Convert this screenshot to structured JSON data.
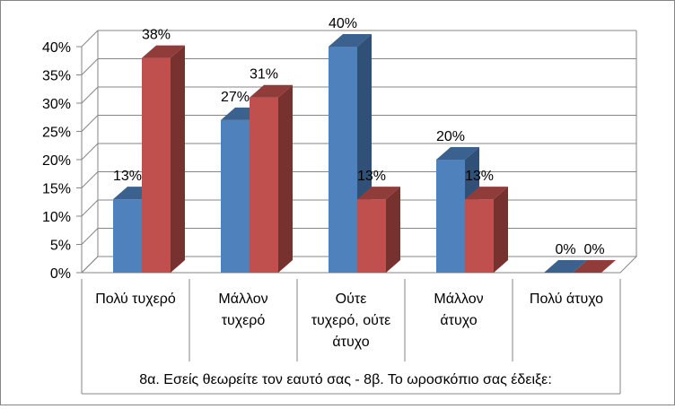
{
  "chart_data": {
    "type": "bar",
    "categories": [
      [
        "Πολύ τυχερό"
      ],
      [
        "Μάλλον",
        "τυχερό"
      ],
      [
        "Ούτε",
        "τυχερό, ούτε",
        "άτυχο"
      ],
      [
        "Μάλλον",
        "άτυχο"
      ],
      [
        "Πολύ άτυχο"
      ]
    ],
    "series": [
      {
        "values": [
          13,
          27,
          40,
          20,
          0
        ],
        "labels": [
          "13%",
          "27%",
          "40%",
          "20%",
          "0%"
        ],
        "color": "#4F81BD"
      },
      {
        "values": [
          38,
          31,
          13,
          13,
          0
        ],
        "labels": [
          "38%",
          "31%",
          "13%",
          "13%",
          "0%"
        ],
        "color": "#C0504D"
      }
    ],
    "ylim": [
      0,
      40
    ],
    "yticks": [
      0,
      5,
      10,
      15,
      20,
      25,
      30,
      35,
      40
    ],
    "ytick_labels": [
      "0%",
      "5%",
      "10%",
      "15%",
      "20%",
      "25%",
      "30%",
      "35%",
      "40%"
    ],
    "xlabel": "8α. Εσείς θεωρείτε τον εαυτό σας - 8β. Το ωροσκόπιο σας έδειξε:",
    "grid": true,
    "style": "3d-column"
  }
}
